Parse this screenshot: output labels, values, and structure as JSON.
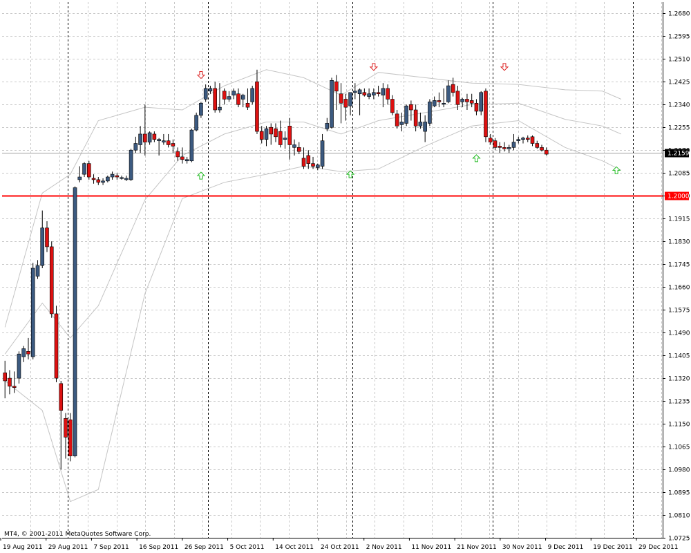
{
  "watermark": "MT4, © 2001-2011 MetaQuotes Software Corp.",
  "colors": {
    "bull": "#3c5a80",
    "bear": "#dd1111",
    "grid": "#c8c8c8",
    "band": "#c4c4c4",
    "hline": "#ff0000",
    "bid_line": "#a0a0a0",
    "down_arrow": "#dd2222",
    "up_arrow": "#22bb22"
  },
  "chart_data": {
    "type": "candlestick",
    "ylim": [
      1.0725,
      1.2722
    ],
    "y_ticks": [
      "1.2680",
      "1.2595",
      "1.2510",
      "1.2425",
      "1.2340",
      "1.2255",
      "1.2170",
      "1.2085",
      "1.2000",
      "1.1915",
      "1.1830",
      "1.1745",
      "1.1660",
      "1.1575",
      "1.1490",
      "1.1405",
      "1.1320",
      "1.1235",
      "1.1150",
      "1.1065",
      "1.0980",
      "1.0895",
      "1.0810",
      "1.0725"
    ],
    "x_labels": [
      "19 Aug 2011",
      "29 Aug 2011",
      "7 Sep 2011",
      "16 Sep 2011",
      "26 Sep 2011",
      "5 Oct 2011",
      "14 Oct 2011",
      "24 Oct 2011",
      "2 Nov 2011",
      "11 Nov 2011",
      "21 Nov 2011",
      "30 Nov 2011",
      "9 Dec 2011",
      "19 Dec 2011",
      "29 Dec 2011"
    ],
    "horizontal_line": {
      "value": 1.2,
      "label": "1.2000"
    },
    "current_price": {
      "value": 1.2159,
      "label": "1.2159"
    },
    "candles": [
      {
        "o": 1.134,
        "h": 1.1385,
        "l": 1.1245,
        "c": 1.131
      },
      {
        "o": 1.132,
        "h": 1.135,
        "l": 1.126,
        "c": 1.129
      },
      {
        "o": 1.129,
        "h": 1.1345,
        "l": 1.1265,
        "c": 1.1285
      },
      {
        "o": 1.132,
        "h": 1.142,
        "l": 1.13,
        "c": 1.141
      },
      {
        "o": 1.14,
        "h": 1.144,
        "l": 1.138,
        "c": 1.143
      },
      {
        "o": 1.142,
        "h": 1.147,
        "l": 1.139,
        "c": 1.141
      },
      {
        "o": 1.14,
        "h": 1.175,
        "l": 1.139,
        "c": 1.173
      },
      {
        "o": 1.17,
        "h": 1.176,
        "l": 1.169,
        "c": 1.174
      },
      {
        "o": 1.174,
        "h": 1.1945,
        "l": 1.173,
        "c": 1.188
      },
      {
        "o": 1.188,
        "h": 1.1905,
        "l": 1.179,
        "c": 1.181
      },
      {
        "o": 1.181,
        "h": 1.183,
        "l": 1.1545,
        "c": 1.156
      },
      {
        "o": 1.156,
        "h": 1.159,
        "l": 1.1305,
        "c": 1.132
      },
      {
        "o": 1.13,
        "h": 1.131,
        "l": 1.098,
        "c": 1.12
      },
      {
        "o": 1.117,
        "h": 1.119,
        "l": 1.102,
        "c": 1.11
      },
      {
        "o": 1.1165,
        "h": 1.119,
        "l": 1.101,
        "c": 1.103
      },
      {
        "o": 1.103,
        "h": 1.2035,
        "l": 1.1025,
        "c": 1.203
      },
      {
        "o": 1.206,
        "h": 1.211,
        "l": 1.205,
        "c": 1.207
      },
      {
        "o": 1.208,
        "h": 1.2125,
        "l": 1.207,
        "c": 1.212
      },
      {
        "o": 1.212,
        "h": 1.213,
        "l": 1.206,
        "c": 1.207
      },
      {
        "o": 1.2065,
        "h": 1.208,
        "l": 1.2045,
        "c": 1.206
      },
      {
        "o": 1.206,
        "h": 1.207,
        "l": 1.204,
        "c": 1.205
      },
      {
        "o": 1.205,
        "h": 1.2065,
        "l": 1.204,
        "c": 1.2055
      },
      {
        "o": 1.2055,
        "h": 1.2075,
        "l": 1.205,
        "c": 1.207
      },
      {
        "o": 1.207,
        "h": 1.209,
        "l": 1.206,
        "c": 1.208
      },
      {
        "o": 1.2075,
        "h": 1.2085,
        "l": 1.206,
        "c": 1.207
      },
      {
        "o": 1.2065,
        "h": 1.2075,
        "l": 1.206,
        "c": 1.2068
      },
      {
        "o": 1.206,
        "h": 1.2075,
        "l": 1.2055,
        "c": 1.2065
      },
      {
        "o": 1.206,
        "h": 1.2175,
        "l": 1.2055,
        "c": 1.217
      },
      {
        "o": 1.217,
        "h": 1.222,
        "l": 1.216,
        "c": 1.2195
      },
      {
        "o": 1.219,
        "h": 1.226,
        "l": 1.216,
        "c": 1.223
      },
      {
        "o": 1.223,
        "h": 1.234,
        "l": 1.215,
        "c": 1.22
      },
      {
        "o": 1.22,
        "h": 1.224,
        "l": 1.219,
        "c": 1.2235
      },
      {
        "o": 1.223,
        "h": 1.224,
        "l": 1.22,
        "c": 1.221
      },
      {
        "o": 1.2205,
        "h": 1.2215,
        "l": 1.215,
        "c": 1.221
      },
      {
        "o": 1.22,
        "h": 1.223,
        "l": 1.219,
        "c": 1.2205
      },
      {
        "o": 1.2205,
        "h": 1.223,
        "l": 1.218,
        "c": 1.219
      },
      {
        "o": 1.2195,
        "h": 1.221,
        "l": 1.216,
        "c": 1.2185
      },
      {
        "o": 1.2165,
        "h": 1.218,
        "l": 1.213,
        "c": 1.2145
      },
      {
        "o": 1.2145,
        "h": 1.218,
        "l": 1.212,
        "c": 1.2135
      },
      {
        "o": 1.213,
        "h": 1.2145,
        "l": 1.212,
        "c": 1.2135
      },
      {
        "o": 1.213,
        "h": 1.225,
        "l": 1.2125,
        "c": 1.2245
      },
      {
        "o": 1.2245,
        "h": 1.231,
        "l": 1.224,
        "c": 1.23
      },
      {
        "o": 1.23,
        "h": 1.235,
        "l": 1.229,
        "c": 1.2345
      },
      {
        "o": 1.236,
        "h": 1.2415,
        "l": 1.235,
        "c": 1.24
      },
      {
        "o": 1.239,
        "h": 1.241,
        "l": 1.238,
        "c": 1.24
      },
      {
        "o": 1.24,
        "h": 1.2425,
        "l": 1.231,
        "c": 1.232
      },
      {
        "o": 1.232,
        "h": 1.242,
        "l": 1.231,
        "c": 1.233
      },
      {
        "o": 1.239,
        "h": 1.24,
        "l": 1.234,
        "c": 1.236
      },
      {
        "o": 1.236,
        "h": 1.239,
        "l": 1.235,
        "c": 1.237
      },
      {
        "o": 1.2375,
        "h": 1.24,
        "l": 1.236,
        "c": 1.239
      },
      {
        "o": 1.238,
        "h": 1.24,
        "l": 1.233,
        "c": 1.234
      },
      {
        "o": 1.236,
        "h": 1.238,
        "l": 1.233,
        "c": 1.2375
      },
      {
        "o": 1.2345,
        "h": 1.24,
        "l": 1.232,
        "c": 1.233
      },
      {
        "o": 1.235,
        "h": 1.241,
        "l": 1.234,
        "c": 1.24
      },
      {
        "o": 1.2425,
        "h": 1.247,
        "l": 1.223,
        "c": 1.224
      },
      {
        "o": 1.224,
        "h": 1.226,
        "l": 1.2195,
        "c": 1.221
      },
      {
        "o": 1.221,
        "h": 1.226,
        "l": 1.2185,
        "c": 1.225
      },
      {
        "o": 1.2255,
        "h": 1.227,
        "l": 1.219,
        "c": 1.223
      },
      {
        "o": 1.225,
        "h": 1.227,
        "l": 1.22,
        "c": 1.222
      },
      {
        "o": 1.224,
        "h": 1.228,
        "l": 1.218,
        "c": 1.219
      },
      {
        "o": 1.221,
        "h": 1.224,
        "l": 1.2175,
        "c": 1.2215
      },
      {
        "o": 1.226,
        "h": 1.229,
        "l": 1.2135,
        "c": 1.219
      },
      {
        "o": 1.218,
        "h": 1.221,
        "l": 1.215,
        "c": 1.219
      },
      {
        "o": 1.218,
        "h": 1.22,
        "l": 1.2155,
        "c": 1.2165
      },
      {
        "o": 1.214,
        "h": 1.218,
        "l": 1.21,
        "c": 1.211
      },
      {
        "o": 1.215,
        "h": 1.217,
        "l": 1.21,
        "c": 1.212
      },
      {
        "o": 1.212,
        "h": 1.2145,
        "l": 1.21,
        "c": 1.211
      },
      {
        "o": 1.2105,
        "h": 1.212,
        "l": 1.2095,
        "c": 1.2115
      },
      {
        "o": 1.211,
        "h": 1.223,
        "l": 1.21,
        "c": 1.2205
      },
      {
        "o": 1.225,
        "h": 1.229,
        "l": 1.224,
        "c": 1.227
      },
      {
        "o": 1.2255,
        "h": 1.244,
        "l": 1.225,
        "c": 1.243
      },
      {
        "o": 1.2425,
        "h": 1.245,
        "l": 1.232,
        "c": 1.239
      },
      {
        "o": 1.238,
        "h": 1.242,
        "l": 1.227,
        "c": 1.2345
      },
      {
        "o": 1.236,
        "h": 1.238,
        "l": 1.228,
        "c": 1.233
      },
      {
        "o": 1.2335,
        "h": 1.238,
        "l": 1.23,
        "c": 1.2385
      },
      {
        "o": 1.2385,
        "h": 1.242,
        "l": 1.236,
        "c": 1.239
      },
      {
        "o": 1.238,
        "h": 1.24,
        "l": 1.23,
        "c": 1.2395
      },
      {
        "o": 1.2385,
        "h": 1.24,
        "l": 1.237,
        "c": 1.2375
      },
      {
        "o": 1.237,
        "h": 1.24,
        "l": 1.236,
        "c": 1.238
      },
      {
        "o": 1.2375,
        "h": 1.24,
        "l": 1.236,
        "c": 1.2385
      },
      {
        "o": 1.2385,
        "h": 1.241,
        "l": 1.237,
        "c": 1.238
      },
      {
        "o": 1.2375,
        "h": 1.242,
        "l": 1.233,
        "c": 1.24
      },
      {
        "o": 1.24,
        "h": 1.2415,
        "l": 1.234,
        "c": 1.236
      },
      {
        "o": 1.236,
        "h": 1.2375,
        "l": 1.23,
        "c": 1.231
      },
      {
        "o": 1.2305,
        "h": 1.232,
        "l": 1.225,
        "c": 1.226
      },
      {
        "o": 1.2265,
        "h": 1.231,
        "l": 1.224,
        "c": 1.2275
      },
      {
        "o": 1.227,
        "h": 1.234,
        "l": 1.226,
        "c": 1.2335
      },
      {
        "o": 1.234,
        "h": 1.2355,
        "l": 1.228,
        "c": 1.232
      },
      {
        "o": 1.232,
        "h": 1.234,
        "l": 1.224,
        "c": 1.226
      },
      {
        "o": 1.226,
        "h": 1.231,
        "l": 1.225,
        "c": 1.2275
      },
      {
        "o": 1.224,
        "h": 1.23,
        "l": 1.22,
        "c": 1.2275
      },
      {
        "o": 1.227,
        "h": 1.236,
        "l": 1.226,
        "c": 1.235
      },
      {
        "o": 1.2335,
        "h": 1.237,
        "l": 1.233,
        "c": 1.2355
      },
      {
        "o": 1.2355,
        "h": 1.2385,
        "l": 1.233,
        "c": 1.235
      },
      {
        "o": 1.2345,
        "h": 1.24,
        "l": 1.233,
        "c": 1.2345
      },
      {
        "o": 1.235,
        "h": 1.243,
        "l": 1.2345,
        "c": 1.241
      },
      {
        "o": 1.2415,
        "h": 1.244,
        "l": 1.237,
        "c": 1.2385
      },
      {
        "o": 1.239,
        "h": 1.241,
        "l": 1.232,
        "c": 1.234
      },
      {
        "o": 1.235,
        "h": 1.2365,
        "l": 1.233,
        "c": 1.236
      },
      {
        "o": 1.236,
        "h": 1.238,
        "l": 1.232,
        "c": 1.235
      },
      {
        "o": 1.2355,
        "h": 1.238,
        "l": 1.233,
        "c": 1.2345
      },
      {
        "o": 1.2345,
        "h": 1.236,
        "l": 1.23,
        "c": 1.2315
      },
      {
        "o": 1.2315,
        "h": 1.239,
        "l": 1.23,
        "c": 1.2385
      },
      {
        "o": 1.239,
        "h": 1.24,
        "l": 1.22,
        "c": 1.222
      },
      {
        "o": 1.2215,
        "h": 1.223,
        "l": 1.219,
        "c": 1.22
      },
      {
        "o": 1.2205,
        "h": 1.2215,
        "l": 1.217,
        "c": 1.218
      },
      {
        "o": 1.2185,
        "h": 1.22,
        "l": 1.216,
        "c": 1.218
      },
      {
        "o": 1.218,
        "h": 1.22,
        "l": 1.2165,
        "c": 1.2175
      },
      {
        "o": 1.2175,
        "h": 1.219,
        "l": 1.216,
        "c": 1.218
      },
      {
        "o": 1.218,
        "h": 1.223,
        "l": 1.217,
        "c": 1.22
      },
      {
        "o": 1.2205,
        "h": 1.222,
        "l": 1.2195,
        "c": 1.221
      },
      {
        "o": 1.221,
        "h": 1.222,
        "l": 1.2195,
        "c": 1.2215
      },
      {
        "o": 1.2215,
        "h": 1.2225,
        "l": 1.22,
        "c": 1.221
      },
      {
        "o": 1.222,
        "h": 1.2225,
        "l": 1.2185,
        "c": 1.2195
      },
      {
        "o": 1.2195,
        "h": 1.2205,
        "l": 1.2175,
        "c": 1.218
      },
      {
        "o": 1.218,
        "h": 1.219,
        "l": 1.2165,
        "c": 1.217
      },
      {
        "o": 1.217,
        "h": 1.218,
        "l": 1.215,
        "c": 1.2155
      }
    ],
    "fractals_up": [
      {
        "i": 42,
        "v": 1.245
      },
      {
        "i": 79,
        "v": 1.248
      },
      {
        "i": 107,
        "v": 1.248
      }
    ],
    "fractals_down": [
      {
        "i": 42,
        "v": 1.2075
      },
      {
        "i": 74,
        "v": 1.208
      },
      {
        "i": 101,
        "v": 1.214
      },
      {
        "i": 131,
        "v": 1.2095
      }
    ],
    "bands": {
      "upper": [
        {
          "i": 0,
          "v": 1.151
        },
        {
          "i": 8,
          "v": 1.201
        },
        {
          "i": 14,
          "v": 1.208
        },
        {
          "i": 20,
          "v": 1.228
        },
        {
          "i": 30,
          "v": 1.233
        },
        {
          "i": 38,
          "v": 1.232
        },
        {
          "i": 47,
          "v": 1.241
        },
        {
          "i": 56,
          "v": 1.247
        },
        {
          "i": 64,
          "v": 1.244
        },
        {
          "i": 72,
          "v": 1.2375
        },
        {
          "i": 80,
          "v": 1.246
        },
        {
          "i": 90,
          "v": 1.244
        },
        {
          "i": 100,
          "v": 1.242
        },
        {
          "i": 110,
          "v": 1.2415
        },
        {
          "i": 120,
          "v": 1.2395
        },
        {
          "i": 128,
          "v": 1.239
        },
        {
          "i": 132,
          "v": 1.236
        }
      ],
      "lower": [
        {
          "i": 0,
          "v": 1.131
        },
        {
          "i": 8,
          "v": 1.12
        },
        {
          "i": 14,
          "v": 1.086
        },
        {
          "i": 20,
          "v": 1.0905
        },
        {
          "i": 30,
          "v": 1.1635
        },
        {
          "i": 38,
          "v": 1.199
        },
        {
          "i": 47,
          "v": 1.205
        },
        {
          "i": 56,
          "v": 1.208
        },
        {
          "i": 64,
          "v": 1.211
        },
        {
          "i": 72,
          "v": 1.209
        },
        {
          "i": 80,
          "v": 1.21
        },
        {
          "i": 90,
          "v": 1.2185
        },
        {
          "i": 100,
          "v": 1.226
        },
        {
          "i": 110,
          "v": 1.228
        },
        {
          "i": 120,
          "v": 1.218
        },
        {
          "i": 128,
          "v": 1.213
        },
        {
          "i": 132,
          "v": 1.2095
        }
      ],
      "middle": [
        {
          "i": 0,
          "v": 1.141
        },
        {
          "i": 8,
          "v": 1.16
        },
        {
          "i": 14,
          "v": 1.147
        },
        {
          "i": 20,
          "v": 1.159
        },
        {
          "i": 30,
          "v": 1.1985
        },
        {
          "i": 38,
          "v": 1.215
        },
        {
          "i": 47,
          "v": 1.223
        },
        {
          "i": 56,
          "v": 1.2275
        },
        {
          "i": 64,
          "v": 1.2275
        },
        {
          "i": 72,
          "v": 1.223
        },
        {
          "i": 80,
          "v": 1.228
        },
        {
          "i": 90,
          "v": 1.231
        },
        {
          "i": 100,
          "v": 1.234
        },
        {
          "i": 110,
          "v": 1.2345
        },
        {
          "i": 120,
          "v": 1.2285
        },
        {
          "i": 128,
          "v": 1.226
        },
        {
          "i": 132,
          "v": 1.223
        }
      ]
    },
    "separators": [
      14,
      44,
      75,
      105,
      135
    ]
  }
}
